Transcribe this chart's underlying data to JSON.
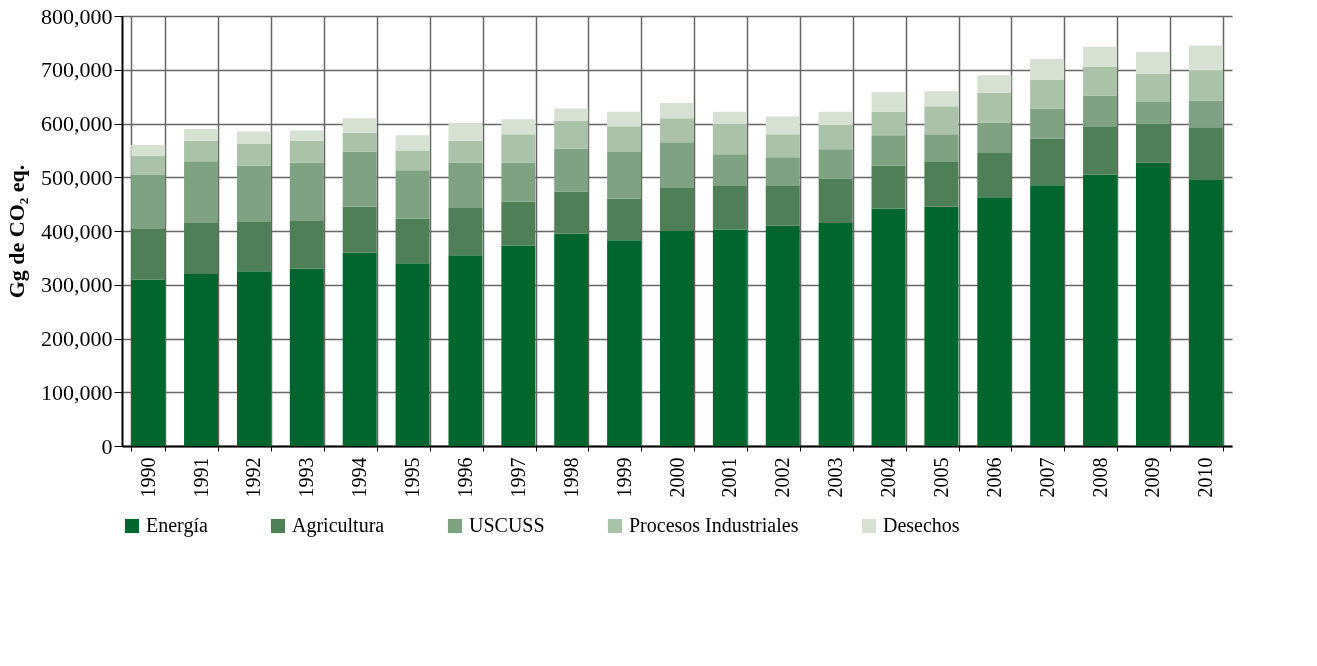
{
  "chart_data": {
    "type": "bar",
    "stacked": true,
    "ylabel": "Gg de CO₂ eq.",
    "categories": [
      "1990",
      "1991",
      "1992",
      "1993",
      "1994",
      "1995",
      "1996",
      "1997",
      "1998",
      "1999",
      "2000",
      "2001",
      "2002",
      "2003",
      "2004",
      "2005",
      "2006",
      "2007",
      "2008",
      "2009",
      "2010"
    ],
    "series": [
      {
        "name": "Energía",
        "color": "#00662e",
        "values": [
          310000,
          320000,
          325000,
          330000,
          360000,
          340000,
          355000,
          373000,
          395000,
          383000,
          400000,
          403000,
          410000,
          415000,
          442000,
          445000,
          463000,
          485000,
          505000,
          527000,
          495000
        ]
      },
      {
        "name": "Agricultura",
        "color": "#4f7f57",
        "values": [
          95000,
          95000,
          93000,
          90000,
          85000,
          83000,
          88000,
          82000,
          78000,
          77000,
          80000,
          82000,
          75000,
          82000,
          80000,
          85000,
          82000,
          87000,
          90000,
          73000,
          98000
        ]
      },
      {
        "name": "USCUSS",
        "color": "#7fa283",
        "values": [
          100000,
          115000,
          104000,
          107000,
          103000,
          90000,
          84000,
          72000,
          80000,
          87000,
          85000,
          58000,
          52000,
          55000,
          56000,
          50000,
          57000,
          56000,
          57000,
          40000,
          50000
        ]
      },
      {
        "name": "Procesos Industriales",
        "color": "#a9c2a8",
        "values": [
          35000,
          38000,
          40000,
          41000,
          35000,
          37000,
          41000,
          53000,
          52000,
          48000,
          45000,
          55000,
          43000,
          45000,
          44000,
          52000,
          55000,
          54000,
          53000,
          52000,
          55000
        ]
      },
      {
        "name": "Desechos",
        "color": "#d6e1d3",
        "values": [
          20000,
          22000,
          23000,
          19000,
          27000,
          28000,
          32000,
          28000,
          23000,
          27000,
          28000,
          24000,
          33000,
          25000,
          36000,
          28000,
          33000,
          38000,
          38000,
          41000,
          47000
        ]
      }
    ],
    "ylim": [
      0,
      800000
    ],
    "yticks": [
      0,
      {
        "value": 100000,
        "label": "100,000"
      },
      {
        "value": 200000,
        "label": "200,000"
      },
      {
        "value": 300000,
        "label": "300,000"
      },
      {
        "value": 400000,
        "label": "400,000"
      },
      {
        "value": 500000,
        "label": "500,000"
      },
      {
        "value": 600000,
        "label": "600,000"
      },
      {
        "value": 700000,
        "label": "700,000"
      },
      {
        "value": 800000,
        "label": "800,000"
      }
    ],
    "grid": true,
    "legend": "bottom"
  }
}
